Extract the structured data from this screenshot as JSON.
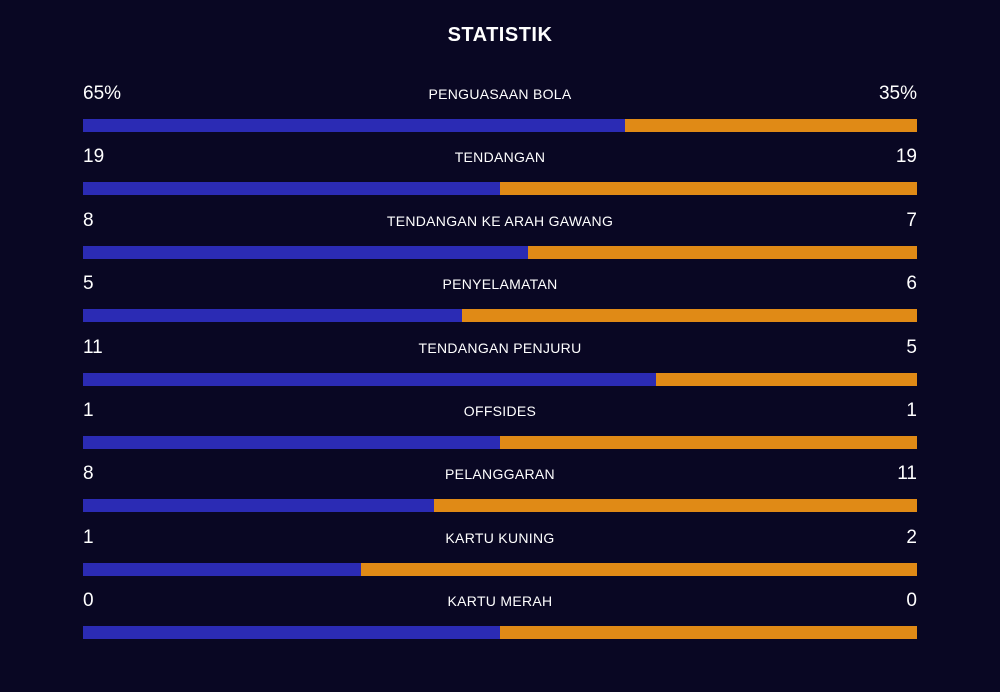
{
  "title": "STATISTIK",
  "colors": {
    "background": "#090723",
    "home": "#2b2bb4",
    "away": "#e08a16"
  },
  "stats": [
    {
      "label": "PENGUASAAN BOLA",
      "home": "65%",
      "away": "35%",
      "home_share": 0.65
    },
    {
      "label": "TENDANGAN",
      "home": "19",
      "away": "19",
      "home_share": 0.5
    },
    {
      "label": "TENDANGAN KE ARAH GAWANG",
      "home": "8",
      "away": "7",
      "home_share": 0.533
    },
    {
      "label": "PENYELAMATAN",
      "home": "5",
      "away": "6",
      "home_share": 0.455
    },
    {
      "label": "TENDANGAN PENJURU",
      "home": "11",
      "away": "5",
      "home_share": 0.6875
    },
    {
      "label": "OFFSIDES",
      "home": "1",
      "away": "1",
      "home_share": 0.5
    },
    {
      "label": "PELANGGARAN",
      "home": "8",
      "away": "11",
      "home_share": 0.421
    },
    {
      "label": "KARTU KUNING",
      "home": "1",
      "away": "2",
      "home_share": 0.333
    },
    {
      "label": "KARTU MERAH",
      "home": "0",
      "away": "0",
      "home_share": 0.5
    }
  ]
}
